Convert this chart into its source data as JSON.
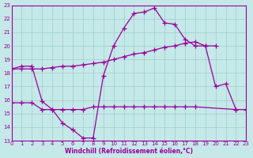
{
  "background_color": "#c5e8e8",
  "grid_color": "#a0cccc",
  "line_color": "#990099",
  "xlabel": "Windchill (Refroidissement éolien,°C)",
  "xlim": [
    0,
    23
  ],
  "ylim": [
    13,
    23
  ],
  "xticks": [
    0,
    1,
    2,
    3,
    4,
    5,
    6,
    7,
    8,
    9,
    10,
    11,
    12,
    13,
    14,
    15,
    16,
    17,
    18,
    19,
    20,
    21,
    22,
    23
  ],
  "yticks": [
    13,
    14,
    15,
    16,
    17,
    18,
    19,
    20,
    21,
    22,
    23
  ],
  "curve1_x": [
    0,
    1,
    2,
    3,
    4,
    5,
    6,
    7,
    8,
    9,
    10,
    11,
    12,
    13,
    14,
    15,
    16,
    17,
    18,
    19,
    20,
    21,
    22
  ],
  "curve1_y": [
    18.3,
    18.5,
    18.5,
    15.9,
    15.3,
    14.3,
    13.8,
    13.2,
    13.2,
    17.8,
    20.0,
    21.3,
    22.4,
    22.5,
    22.8,
    21.7,
    21.6,
    20.5,
    20.0,
    20.0,
    17.0,
    17.2,
    15.3
  ],
  "curve2_x": [
    0,
    1,
    2,
    3,
    4,
    5,
    6,
    7,
    8,
    9,
    10,
    11,
    12,
    13,
    14,
    15,
    16,
    17,
    18,
    19,
    20
  ],
  "curve2_y": [
    18.3,
    18.3,
    18.3,
    18.3,
    18.4,
    18.5,
    18.5,
    18.6,
    18.7,
    18.8,
    19.0,
    19.2,
    19.4,
    19.5,
    19.7,
    19.9,
    20.0,
    20.2,
    20.3,
    20.0,
    20.0
  ],
  "curve3_x": [
    0,
    1,
    2,
    3,
    4,
    5,
    6,
    7,
    8,
    9,
    10,
    11,
    12,
    13,
    14,
    15,
    16,
    17,
    18,
    22,
    23
  ],
  "curve3_y": [
    15.8,
    15.8,
    15.8,
    15.3,
    15.3,
    15.3,
    15.3,
    15.3,
    15.5,
    15.5,
    15.5,
    15.5,
    15.5,
    15.5,
    15.5,
    15.5,
    15.5,
    15.5,
    15.5,
    15.3,
    15.3
  ]
}
